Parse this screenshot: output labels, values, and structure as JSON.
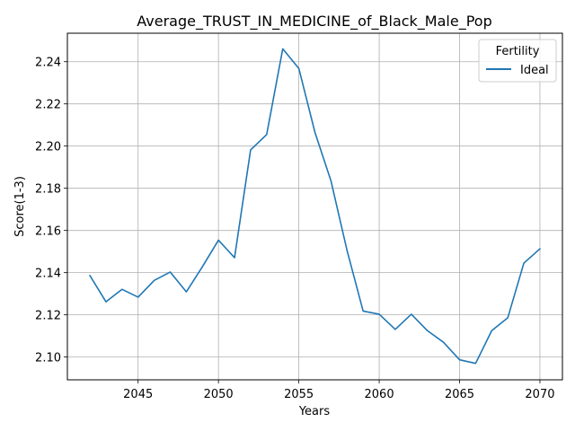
{
  "chart_data": {
    "type": "line",
    "title": "Average_TRUST_IN_MEDICINE_of_Black_Male_Pop",
    "xlabel": "Years",
    "ylabel": "Score(1-3)",
    "xlim": [
      2040.6,
      2071.4
    ],
    "ylim": [
      2.0892,
      2.2535
    ],
    "x_ticks": [
      2045,
      2050,
      2055,
      2060,
      2065,
      2070
    ],
    "y_ticks": [
      2.1,
      2.12,
      2.14,
      2.16,
      2.18,
      2.2,
      2.22,
      2.24
    ],
    "x_tick_labels": [
      "2045",
      "2050",
      "2055",
      "2060",
      "2065",
      "2070"
    ],
    "y_tick_labels": [
      "2.10",
      "2.12",
      "2.14",
      "2.16",
      "2.18",
      "2.20",
      "2.22",
      "2.24"
    ],
    "grid": true,
    "legend": {
      "title": "Fertility",
      "position": "top-right"
    },
    "series": [
      {
        "name": "Ideal",
        "color": "#1f77b4",
        "x": [
          2042,
          2043,
          2044,
          2045,
          2046,
          2047,
          2048,
          2049,
          2050,
          2051,
          2052,
          2053,
          2054,
          2055,
          2056,
          2057,
          2058,
          2059,
          2060,
          2061,
          2062,
          2063,
          2064,
          2065,
          2066,
          2067,
          2068,
          2069,
          2070
        ],
        "y": [
          2.1386,
          2.1262,
          2.1321,
          2.1284,
          2.1363,
          2.1403,
          2.1309,
          2.1428,
          2.1554,
          2.1471,
          2.1982,
          2.2055,
          2.2461,
          2.2368,
          2.2066,
          2.1835,
          2.1505,
          2.1218,
          2.1203,
          2.1131,
          2.1203,
          2.1125,
          2.107,
          2.0987,
          2.097,
          2.1125,
          2.1186,
          2.1445,
          2.1513
        ]
      }
    ]
  }
}
